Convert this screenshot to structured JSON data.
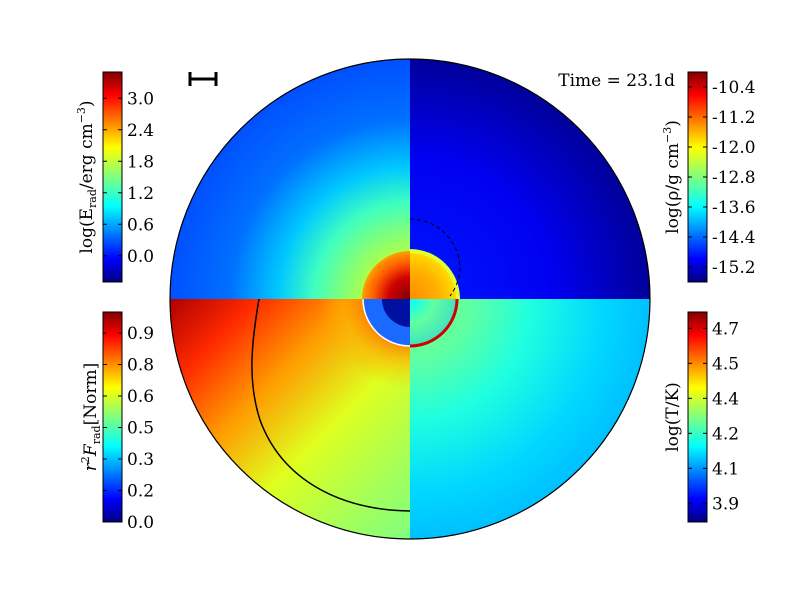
{
  "chart_data": {
    "type": "heatmap",
    "title": "",
    "time_label": "Time = 23.1d",
    "quadrants": [
      {
        "quadrant": "top-left",
        "quantity": "log(E_rad/erg cm^-3)",
        "colormap": "jet",
        "ticks": [
          "0.0",
          "0.6",
          "1.2",
          "1.8",
          "2.4",
          "3.0"
        ],
        "tick_values": [
          0.0,
          0.6,
          1.2,
          1.8,
          2.4,
          3.0
        ],
        "range": [
          -0.5,
          3.5
        ]
      },
      {
        "quadrant": "top-right",
        "quantity": "log(ρ/g cm^-3)",
        "colormap": "jet",
        "ticks": [
          "-10.4",
          "-11.2",
          "-12.0",
          "-12.8",
          "-13.6",
          "-14.4",
          "-15.2"
        ],
        "tick_values": [
          -10.4,
          -11.2,
          -12.0,
          -12.8,
          -13.6,
          -14.4,
          -15.2
        ],
        "range": [
          -15.6,
          -10.0
        ]
      },
      {
        "quadrant": "bottom-left",
        "quantity": "r^2 F_rad [Norm]",
        "colormap": "jet",
        "ticks": [
          "0.0",
          "0.2",
          "0.3",
          "0.5",
          "0.6",
          "0.8",
          "0.9"
        ],
        "tick_values": [
          0.0,
          0.15,
          0.3,
          0.45,
          0.6,
          0.75,
          0.9
        ],
        "range": [
          0.0,
          1.0
        ]
      },
      {
        "quadrant": "bottom-right",
        "quantity": "log(T/K)",
        "colormap": "jet",
        "ticks": [
          "3.9",
          "4.1",
          "4.2",
          "4.4",
          "4.5",
          "4.7"
        ],
        "tick_values": [
          3.9,
          4.05,
          4.2,
          4.35,
          4.5,
          4.65
        ],
        "range": [
          3.82,
          4.72
        ]
      }
    ],
    "grid": false,
    "legend": "none"
  },
  "colorbars": {
    "top_left_label": "log(E",
    "top_left_sub": "rad",
    "top_left_rest": "/erg cm",
    "top_left_sup": "−3",
    "top_left_close": ")",
    "top_right_label": "log(ρ/g cm",
    "top_right_sup": "−3",
    "top_right_close": ")",
    "bottom_left_r": "r",
    "bottom_left_sup": "2",
    "bottom_left_f": "F",
    "bottom_left_sub": "rad",
    "bottom_left_rest": "[Norm]",
    "bottom_right_label": "log(T/K)"
  },
  "colors": {
    "jet_low": "#00007f",
    "jet_mid": "#7fff7f",
    "jet_high": "#7f0000",
    "outline": "#000000"
  }
}
